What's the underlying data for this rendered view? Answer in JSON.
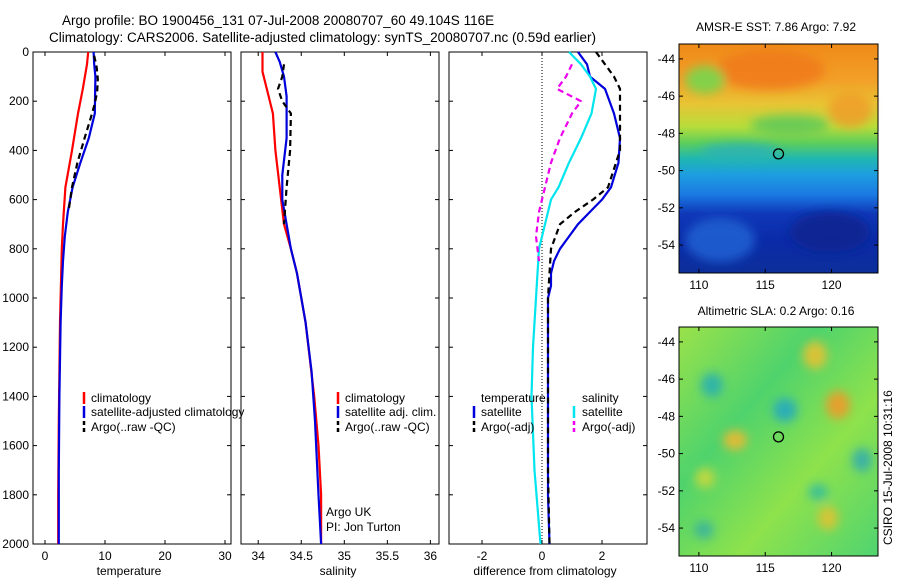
{
  "header": {
    "line1": "Argo profile: BO 1900456_131 07-Jul-2008 20080707_60 49.104S 116E",
    "line2": "Climatology: CARS2006. Satellite-adjusted climatology: synTS_20080707.nc (0.59d earlier)"
  },
  "colors": {
    "climatology": "#ff0000",
    "satellite": "#0000dd",
    "argo": "#000000",
    "satellite_salinity": "#00e5ee",
    "argo_salinity": "#ee00ee"
  },
  "chart_data": [
    {
      "type": "line",
      "id": "temperature",
      "xlabel": "temperature",
      "ylabel": "",
      "xlim": [
        -2,
        31
      ],
      "ylim": [
        2000,
        0
      ],
      "y_inverted": true,
      "xticks": [
        0,
        10,
        20,
        30
      ],
      "yticks": [
        0,
        200,
        400,
        600,
        800,
        1000,
        1200,
        1400,
        1600,
        1800,
        2000
      ],
      "legend": [
        "climatology",
        "satellite-adjusted climatology",
        "Argo(..raw -QC)"
      ],
      "legend_position": "lower-right",
      "series": [
        {
          "name": "climatology",
          "color": "#ff0000",
          "style": "solid",
          "x": [
            7.2,
            7.0,
            6.3,
            5.5,
            4.5,
            3.4,
            3.0,
            2.8,
            2.7,
            2.5,
            2.4,
            2.3,
            2.2,
            2.2
          ],
          "y": [
            0,
            50,
            150,
            250,
            400,
            550,
            700,
            800,
            900,
            1100,
            1300,
            1500,
            1800,
            2000
          ]
        },
        {
          "name": "satellite-adjusted climatology",
          "color": "#0000dd",
          "style": "solid",
          "x": [
            8.1,
            8.2,
            8.4,
            8.3,
            7.3,
            5.9,
            4.6,
            3.8,
            3.3,
            3.0,
            2.8,
            2.6,
            2.4,
            2.3,
            2.3
          ],
          "y": [
            0,
            50,
            100,
            250,
            350,
            450,
            550,
            650,
            750,
            850,
            950,
            1100,
            1400,
            1700,
            2000
          ]
        },
        {
          "name": "Argo(..raw -QC)",
          "color": "#000000",
          "style": "dashed",
          "x": [
            8.2,
            8.6,
            8.8,
            8.7,
            8.3,
            7.6,
            6.6,
            5.4,
            4.5,
            3.9
          ],
          "y": [
            15,
            60,
            110,
            160,
            210,
            270,
            350,
            450,
            550,
            650
          ]
        }
      ]
    },
    {
      "type": "line",
      "id": "salinity",
      "xlabel": "salinity",
      "ylabel": "",
      "xlim": [
        33.8,
        36.1
      ],
      "ylim": [
        2000,
        0
      ],
      "y_inverted": true,
      "xticks": [
        34,
        34.5,
        35,
        35.5,
        36
      ],
      "legend": [
        "climatology",
        "satellite adj. clim.",
        "Argo(..raw -QC)"
      ],
      "legend_position": "lower-right",
      "annotation": [
        "Argo UK",
        "PI: Jon Turton"
      ],
      "series": [
        {
          "name": "climatology",
          "color": "#ff0000",
          "style": "solid",
          "x": [
            34.05,
            34.05,
            34.1,
            34.17,
            34.2,
            34.25,
            34.3,
            34.38,
            34.45,
            34.55,
            34.65,
            34.7,
            34.73,
            34.73
          ],
          "y": [
            0,
            80,
            150,
            250,
            400,
            550,
            700,
            800,
            900,
            1100,
            1400,
            1600,
            1800,
            2000
          ]
        },
        {
          "name": "satellite adj. clim.",
          "color": "#0000dd",
          "style": "solid",
          "x": [
            34.2,
            34.25,
            34.3,
            34.33,
            34.33,
            34.33,
            34.28,
            34.28,
            34.33,
            34.38,
            34.45,
            34.5,
            34.55,
            34.62,
            34.66,
            34.7,
            34.73
          ],
          "y": [
            0,
            40,
            100,
            180,
            250,
            350,
            500,
            600,
            700,
            800,
            900,
            1000,
            1100,
            1300,
            1500,
            1800,
            2000
          ]
        },
        {
          "name": "Argo(..raw -QC)",
          "color": "#000000",
          "style": "dashed",
          "x": [
            34.3,
            34.28,
            34.23,
            34.28,
            34.38,
            34.37,
            34.33,
            34.3
          ],
          "y": [
            50,
            100,
            150,
            200,
            250,
            400,
            550,
            700
          ]
        }
      ]
    },
    {
      "type": "line",
      "id": "difference",
      "xlabel": "difference from climatology",
      "ylabel": "",
      "xlim": [
        -3.1,
        3.5
      ],
      "ylim": [
        2000,
        0
      ],
      "y_inverted": true,
      "xticks": [
        -2,
        0,
        2
      ],
      "zero_line": true,
      "legend_temperature": [
        "temperature",
        "satellite",
        "Argo(-adj)"
      ],
      "legend_salinity": [
        "salinity",
        "satellite",
        "Argo(-adj)"
      ],
      "legend_position": "lower-center",
      "series": [
        {
          "name": "temperature satellite",
          "color": "#0000dd",
          "style": "solid",
          "x": [
            1.2,
            1.5,
            1.6,
            2.1,
            2.4,
            2.6,
            2.55,
            2.3,
            2.0,
            1.6,
            1.2,
            0.9,
            0.6,
            0.4,
            0.3,
            0.3,
            0.2,
            0.2,
            0.2,
            0.2,
            0.2,
            0.25
          ],
          "y": [
            0,
            50,
            100,
            150,
            250,
            350,
            450,
            550,
            600,
            650,
            700,
            750,
            800,
            850,
            900,
            950,
            1000,
            1200,
            1400,
            1600,
            1800,
            2000
          ]
        },
        {
          "name": "temperature Argo(-adj)",
          "color": "#000000",
          "style": "dashed",
          "x": [
            1.8,
            2.1,
            2.4,
            2.6,
            2.6,
            2.6,
            2.6,
            2.2,
            1.7,
            1.1,
            0.6,
            0.3,
            0.2,
            0.2,
            0.2,
            0.25
          ],
          "y": [
            0,
            50,
            100,
            150,
            200,
            300,
            400,
            550,
            600,
            650,
            700,
            800,
            1000,
            1400,
            1700,
            2000
          ]
        },
        {
          "name": "salinity satellite",
          "color": "#00e5ee",
          "style": "solid",
          "x": [
            0.9,
            1.3,
            1.6,
            1.8,
            1.65,
            1.3,
            0.9,
            0.55,
            0.3,
            0.1,
            -0.1,
            -0.2,
            -0.3,
            -0.35,
            -0.25,
            -0.05
          ],
          "y": [
            0,
            50,
            100,
            150,
            250,
            350,
            450,
            550,
            600,
            700,
            800,
            1000,
            1200,
            1400,
            1700,
            2000
          ]
        },
        {
          "name": "salinity Argo(-adj)",
          "color": "#ee00ee",
          "style": "dashed",
          "x": [
            1.0,
            0.8,
            0.5,
            1.3,
            1.0,
            0.6,
            0.3,
            0.1,
            -0.1,
            -0.2,
            -0.1
          ],
          "y": [
            50,
            100,
            150,
            200,
            250,
            350,
            450,
            550,
            650,
            750,
            850
          ]
        }
      ]
    },
    {
      "type": "heatmap",
      "id": "sst",
      "title": "AMSR-E SST: 7.86 Argo: 7.92",
      "xlim": [
        108.5,
        123.5
      ],
      "ylim": [
        -55.5,
        -43.2
      ],
      "xticks": [
        110,
        115,
        120
      ],
      "yticks": [
        -44,
        -46,
        -48,
        -50,
        -52,
        -54
      ],
      "marker": {
        "lon": 116,
        "lat": -49.1
      }
    },
    {
      "type": "heatmap",
      "id": "sla",
      "title": "Altimetric SLA: 0.2 Argo: 0.16",
      "xlim": [
        108.5,
        123.5
      ],
      "ylim": [
        -55.5,
        -43.2
      ],
      "xticks": [
        110,
        115,
        120
      ],
      "yticks": [
        -44,
        -46,
        -48,
        -50,
        -52,
        -54
      ],
      "marker": {
        "lon": 116,
        "lat": -49.1
      }
    }
  ],
  "footer": {
    "stamp": "CSIRO 15-Jul-2008 10:31:16"
  }
}
